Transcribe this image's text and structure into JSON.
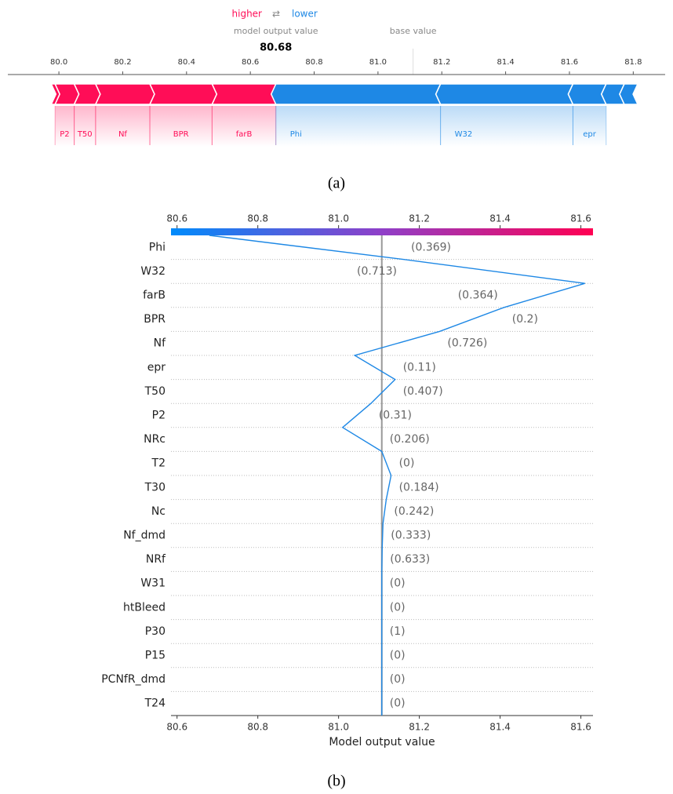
{
  "chart_data": [
    {
      "type": "force",
      "legend_higher": "higher",
      "legend_lower": "lower",
      "output_label": "model output value",
      "base_label": "base value",
      "output_value": 80.68,
      "base_value": 81.11,
      "xlim": [
        79.84,
        81.9
      ],
      "xticks": [
        {
          "value": 80,
          "label": "80.0"
        },
        80.2,
        80.4,
        80.6,
        80.8,
        {
          "value": 81,
          "label": "81.0"
        },
        81.2,
        81.4,
        81.6,
        81.8
      ],
      "colors": {
        "higher": "#ff0d57",
        "lower": "#1e88e5"
      },
      "features": [
        {
          "name": null,
          "value": 0.012
        },
        {
          "name": "P2",
          "value": 0.06
        },
        {
          "name": "T50",
          "value": 0.067
        },
        {
          "name": "Nf",
          "value": 0.17
        },
        {
          "name": "BPR",
          "value": 0.195
        },
        {
          "name": "farB",
          "value": 0.2
        },
        {
          "name": "Phi",
          "value": -0.516
        },
        {
          "name": "W32",
          "value": -0.415
        },
        {
          "name": "epr",
          "value": -0.104
        },
        {
          "name": null,
          "value": -0.057
        },
        {
          "name": null,
          "value": -0.042
        }
      ],
      "caption": "(a)"
    },
    {
      "type": "decision",
      "xlabel": "Model output value",
      "base_value": 81.107,
      "xlim": [
        80.585,
        81.63
      ],
      "xticks": [
        80.6,
        80.8,
        {
          "value": 81,
          "label": "81.0"
        },
        81.2,
        81.4,
        81.6
      ],
      "colormap": [
        "#008bfb",
        "#8f3fc8",
        "#ff0052"
      ],
      "line_color": "#1e88e5",
      "categories": [
        "Phi",
        "W32",
        "farB",
        "BPR",
        "Nf",
        "epr",
        "T50",
        "P2",
        "NRc",
        "T2",
        "T30",
        "Nc",
        "Nf_dmd",
        "NRf",
        "W31",
        "htBleed",
        "P30",
        "P15",
        "PCNfR_dmd",
        "T24"
      ],
      "values": [
        -0.48,
        -0.45,
        0.2,
        0.16,
        0.21,
        -0.1,
        0.06,
        0.07,
        -0.097,
        -0.023,
        0.012,
        0.008,
        0.002,
        0.001,
        0,
        0,
        0,
        0,
        0,
        0
      ],
      "feature_values": [
        "(0.369)",
        "(0.713)",
        "(0.364)",
        "(0.2)",
        "(0.726)",
        "(0.11)",
        "(0.407)",
        "(0.31)",
        "(0.206)",
        "(0)",
        "(0.184)",
        "(0.242)",
        "(0.333)",
        "(0.633)",
        "(0)",
        "(0)",
        "(1)",
        "(0)",
        "(0)",
        "(0)"
      ],
      "caption": "(b)"
    }
  ]
}
